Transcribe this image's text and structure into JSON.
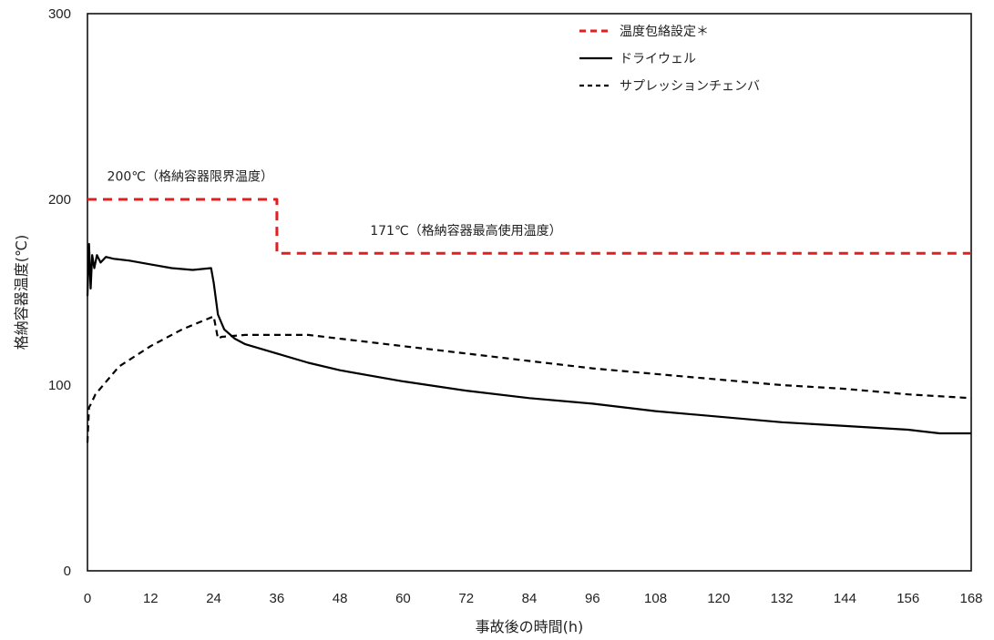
{
  "chart_data": {
    "type": "line",
    "title": "",
    "xlabel": "事故後の時間(h)",
    "ylabel": "格納容器温度(℃)",
    "xlim": [
      0,
      168
    ],
    "ylim": [
      0,
      300
    ],
    "xticks": [
      0,
      12,
      24,
      36,
      48,
      60,
      72,
      84,
      96,
      108,
      120,
      132,
      144,
      156,
      168
    ],
    "yticks": [
      0,
      100,
      200,
      300
    ],
    "grid": false,
    "legend_position": "top-right",
    "series": [
      {
        "name": "温度包絡設定＊",
        "color": "#e02020",
        "style": "dashed",
        "x": [
          0,
          36,
          36,
          168
        ],
        "y": [
          200,
          200,
          171,
          171
        ]
      },
      {
        "name": "ドライウェル",
        "color": "#000000",
        "style": "solid",
        "x": [
          0,
          0.3,
          0.6,
          0.9,
          1.3,
          1.8,
          2.5,
          3.5,
          5,
          8,
          12,
          16,
          20,
          23.5,
          24,
          24.8,
          26,
          28,
          30,
          36,
          42,
          48,
          60,
          72,
          84,
          96,
          108,
          120,
          132,
          144,
          156,
          162,
          168
        ],
        "y": [
          148,
          176,
          152,
          170,
          163,
          170,
          166,
          169,
          168,
          167,
          165,
          163,
          162,
          163,
          155,
          138,
          130,
          125,
          122,
          117,
          112,
          108,
          102,
          97,
          93,
          90,
          86,
          83,
          80,
          78,
          76,
          74,
          74
        ]
      },
      {
        "name": "サプレッションチェンバ",
        "color": "#000000",
        "style": "dashed",
        "x": [
          0,
          0.3,
          0.7,
          1.5,
          3,
          6,
          12,
          18,
          24,
          24.8,
          25.5,
          30,
          36,
          42,
          48,
          60,
          72,
          84,
          96,
          108,
          120,
          132,
          144,
          156,
          168
        ],
        "y": [
          69,
          88,
          90,
          95,
          100,
          110,
          121,
          130,
          137,
          125,
          126,
          127,
          127,
          127,
          125,
          121,
          117,
          113,
          109,
          106,
          103,
          100,
          98,
          95,
          93
        ]
      }
    ],
    "annotations": [
      {
        "text": "200℃（格納容器限界温度）",
        "x": 2,
        "y": 210
      },
      {
        "text": "171℃（格納容器最高使用温度）",
        "x": 52,
        "y": 181
      }
    ]
  }
}
